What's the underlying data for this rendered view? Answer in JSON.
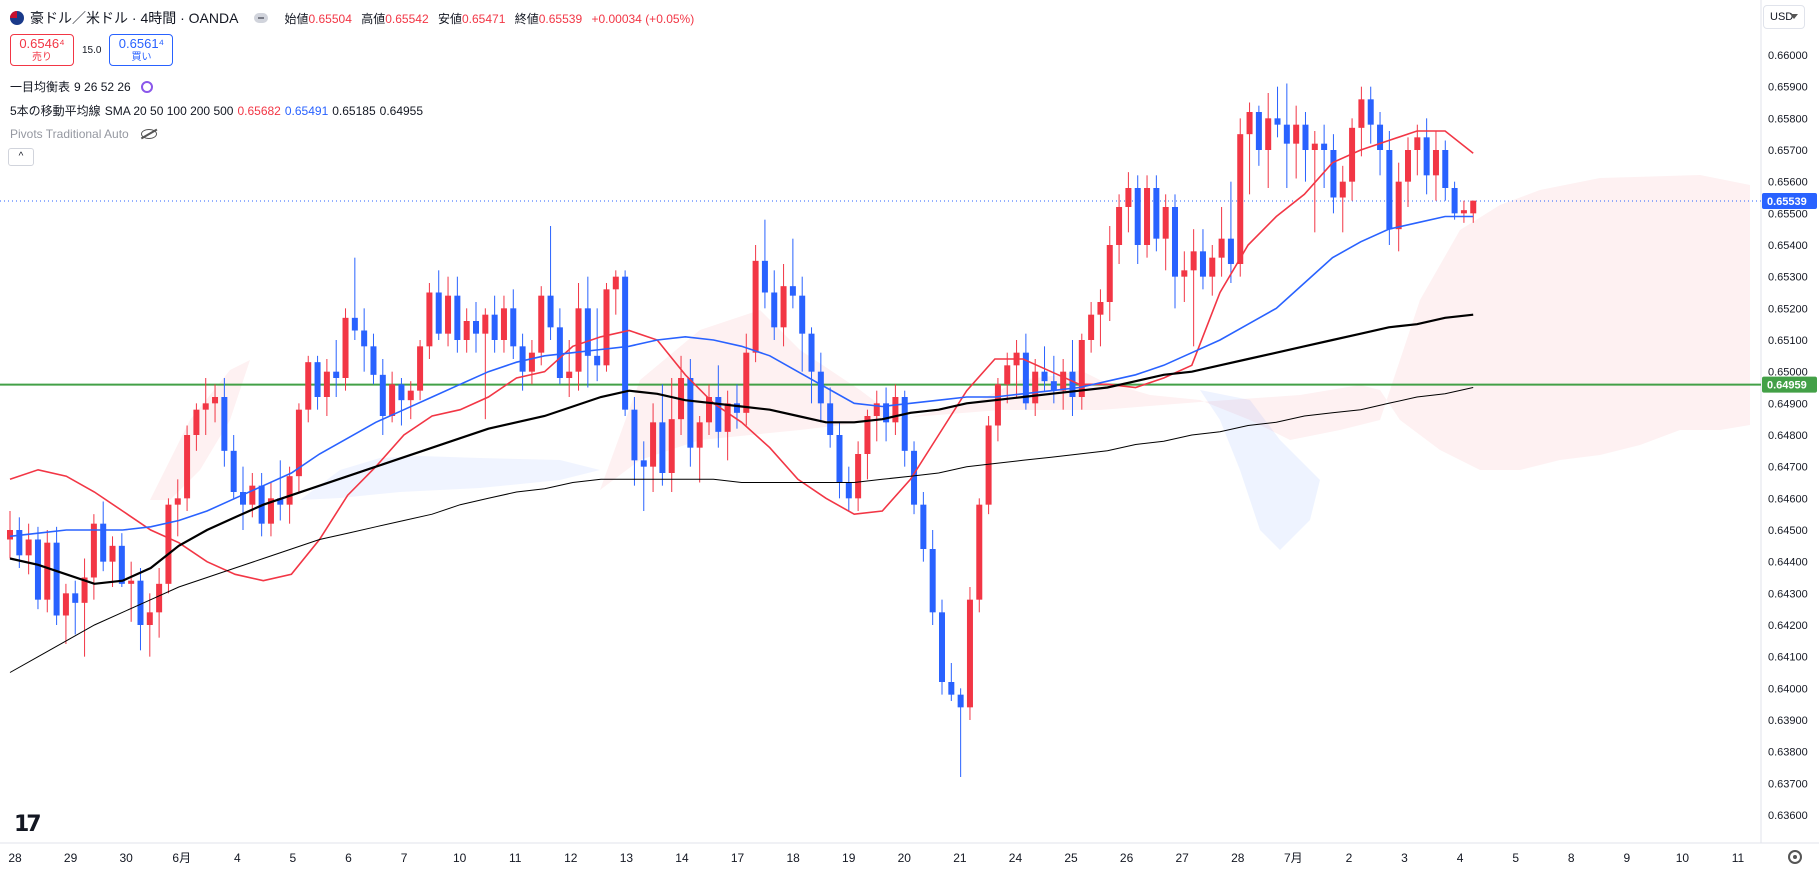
{
  "header": {
    "symbol": "豪ドル／米ドル · 4時間 · OANDA",
    "open_label": "始値",
    "open": "0.65504",
    "high_label": "高値",
    "high": "0.65542",
    "low_label": "安値",
    "low": "0.65471",
    "close_label": "終値",
    "close": "0.65539",
    "change": "+0.00034 (+0.05%)"
  },
  "trade": {
    "sell_price": "0.6546⁴",
    "sell_label": "売り",
    "spread": "15.0",
    "buy_price": "0.6561⁴",
    "buy_label": "買い"
  },
  "indicators": {
    "ichimoku": {
      "name": "一目均衡表",
      "params": "9 26 52 26"
    },
    "sma": {
      "name": "5本の移動平均線",
      "params": "SMA 20 50 100 200 500",
      "v1": "0.65682",
      "v2": "0.65491",
      "v3": "0.65185",
      "v4": "0.64955"
    },
    "pivots": {
      "name": "Pivots Traditional Auto"
    }
  },
  "collapse_label": "^",
  "currency": "USD",
  "logo": "17",
  "colors": {
    "up": "#f23645",
    "down": "#2962ff",
    "sma20": "#f23645",
    "sma50": "#2962ff",
    "sma100": "#000000",
    "sma200": "#000000",
    "level_line": "#43a047"
  },
  "chart_data": {
    "type": "candlestick",
    "y_ticks": [
      "0.66000",
      "0.65900",
      "0.65800",
      "0.65700",
      "0.65600",
      "0.65500",
      "0.65400",
      "0.65300",
      "0.65200",
      "0.65100",
      "0.65000",
      "0.64900",
      "0.64800",
      "0.64700",
      "0.64600",
      "0.64500",
      "0.64400",
      "0.64300",
      "0.64200",
      "0.64100",
      "0.64000",
      "0.63900",
      "0.63800",
      "0.63700",
      "0.63600"
    ],
    "ylim": [
      0.6356,
      0.6605
    ],
    "x_labels": [
      "28",
      "29",
      "30",
      "6月",
      "4",
      "5",
      "6",
      "7",
      "10",
      "11",
      "12",
      "13",
      "14",
      "17",
      "18",
      "19",
      "20",
      "21",
      "24",
      "25",
      "26",
      "27",
      "28",
      "7月",
      "2",
      "3",
      "4",
      "5",
      "8",
      "9",
      "10",
      "11"
    ],
    "price_label": "0.65539",
    "level_label": "0.64959",
    "level_value": 0.64959,
    "current_price": 0.65539,
    "ohlc": [
      [
        0.6447,
        0.6456,
        0.6441,
        0.645
      ],
      [
        0.645,
        0.6454,
        0.6438,
        0.6442
      ],
      [
        0.6442,
        0.6452,
        0.6436,
        0.6447
      ],
      [
        0.6447,
        0.6451,
        0.6425,
        0.6428
      ],
      [
        0.6428,
        0.645,
        0.6424,
        0.6446
      ],
      [
        0.6446,
        0.6451,
        0.642,
        0.6423
      ],
      [
        0.6423,
        0.6433,
        0.6414,
        0.643
      ],
      [
        0.643,
        0.6434,
        0.6417,
        0.6427
      ],
      [
        0.6427,
        0.6441,
        0.641,
        0.6435
      ],
      [
        0.6435,
        0.6455,
        0.6428,
        0.6452
      ],
      [
        0.6452,
        0.6459,
        0.6437,
        0.644
      ],
      [
        0.644,
        0.6448,
        0.6432,
        0.6445
      ],
      [
        0.6445,
        0.6449,
        0.6432,
        0.6433
      ],
      [
        0.6433,
        0.644,
        0.6421,
        0.6434
      ],
      [
        0.6434,
        0.6438,
        0.6412,
        0.642
      ],
      [
        0.642,
        0.643,
        0.641,
        0.6424
      ],
      [
        0.6424,
        0.6438,
        0.6416,
        0.6433
      ],
      [
        0.6433,
        0.646,
        0.643,
        0.6458
      ],
      [
        0.6458,
        0.6466,
        0.6448,
        0.646
      ],
      [
        0.646,
        0.6483,
        0.6456,
        0.648
      ],
      [
        0.648,
        0.649,
        0.6475,
        0.6488
      ],
      [
        0.6488,
        0.6498,
        0.648,
        0.649
      ],
      [
        0.649,
        0.6496,
        0.6484,
        0.6492
      ],
      [
        0.6492,
        0.6498,
        0.647,
        0.6475
      ],
      [
        0.6475,
        0.648,
        0.646,
        0.6462
      ],
      [
        0.6462,
        0.647,
        0.645,
        0.6458
      ],
      [
        0.6458,
        0.6468,
        0.6454,
        0.6464
      ],
      [
        0.6464,
        0.6468,
        0.6448,
        0.6452
      ],
      [
        0.6452,
        0.6465,
        0.6448,
        0.646
      ],
      [
        0.646,
        0.6472,
        0.6453,
        0.6458
      ],
      [
        0.6458,
        0.647,
        0.6452,
        0.6467
      ],
      [
        0.6467,
        0.649,
        0.6462,
        0.6488
      ],
      [
        0.6488,
        0.6505,
        0.6484,
        0.6503
      ],
      [
        0.6503,
        0.6505,
        0.6488,
        0.6492
      ],
      [
        0.6492,
        0.6504,
        0.6486,
        0.65
      ],
      [
        0.65,
        0.651,
        0.6492,
        0.6498
      ],
      [
        0.6498,
        0.652,
        0.6494,
        0.6517
      ],
      [
        0.6517,
        0.6536,
        0.651,
        0.6513
      ],
      [
        0.6513,
        0.652,
        0.65,
        0.6508
      ],
      [
        0.6508,
        0.6512,
        0.6496,
        0.6499
      ],
      [
        0.6499,
        0.6504,
        0.648,
        0.6486
      ],
      [
        0.6486,
        0.65,
        0.6484,
        0.6496
      ],
      [
        0.6496,
        0.6498,
        0.6483,
        0.6491
      ],
      [
        0.6491,
        0.6497,
        0.6485,
        0.6494
      ],
      [
        0.6494,
        0.651,
        0.6491,
        0.6508
      ],
      [
        0.6508,
        0.6528,
        0.6504,
        0.6525
      ],
      [
        0.6525,
        0.6532,
        0.651,
        0.6512
      ],
      [
        0.6512,
        0.653,
        0.6508,
        0.6524
      ],
      [
        0.6524,
        0.653,
        0.6506,
        0.651
      ],
      [
        0.651,
        0.652,
        0.6506,
        0.6516
      ],
      [
        0.6516,
        0.6522,
        0.6506,
        0.6512
      ],
      [
        0.6512,
        0.652,
        0.6485,
        0.6518
      ],
      [
        0.6518,
        0.6524,
        0.6506,
        0.651
      ],
      [
        0.651,
        0.6524,
        0.6506,
        0.652
      ],
      [
        0.652,
        0.6526,
        0.6504,
        0.6508
      ],
      [
        0.6508,
        0.6512,
        0.6494,
        0.65
      ],
      [
        0.65,
        0.651,
        0.6496,
        0.6506
      ],
      [
        0.6506,
        0.6527,
        0.6502,
        0.6524
      ],
      [
        0.6524,
        0.6546,
        0.651,
        0.6514
      ],
      [
        0.6514,
        0.652,
        0.6496,
        0.6498
      ],
      [
        0.6498,
        0.651,
        0.6492,
        0.65
      ],
      [
        0.65,
        0.6528,
        0.6494,
        0.652
      ],
      [
        0.652,
        0.653,
        0.6495,
        0.6505
      ],
      [
        0.6505,
        0.652,
        0.6497,
        0.6502
      ],
      [
        0.6502,
        0.6528,
        0.65,
        0.6526
      ],
      [
        0.6526,
        0.6532,
        0.6518,
        0.653
      ],
      [
        0.653,
        0.6532,
        0.6486,
        0.6488
      ],
      [
        0.6488,
        0.6492,
        0.6464,
        0.6472
      ],
      [
        0.6472,
        0.6478,
        0.6456,
        0.647
      ],
      [
        0.647,
        0.649,
        0.6462,
        0.6484
      ],
      [
        0.6484,
        0.6496,
        0.6464,
        0.6468
      ],
      [
        0.6468,
        0.6498,
        0.6462,
        0.6485
      ],
      [
        0.6485,
        0.6505,
        0.648,
        0.6498
      ],
      [
        0.6498,
        0.6504,
        0.647,
        0.6476
      ],
      [
        0.6476,
        0.6486,
        0.6465,
        0.6484
      ],
      [
        0.6484,
        0.6496,
        0.648,
        0.6492
      ],
      [
        0.6492,
        0.6502,
        0.6476,
        0.6481
      ],
      [
        0.6481,
        0.6494,
        0.6472,
        0.649
      ],
      [
        0.649,
        0.6496,
        0.6482,
        0.6487
      ],
      [
        0.6487,
        0.6512,
        0.6483,
        0.6506
      ],
      [
        0.6506,
        0.654,
        0.6503,
        0.6535
      ],
      [
        0.6535,
        0.6548,
        0.652,
        0.6525
      ],
      [
        0.6525,
        0.6532,
        0.651,
        0.6514
      ],
      [
        0.6514,
        0.6534,
        0.6508,
        0.6527
      ],
      [
        0.6527,
        0.6542,
        0.652,
        0.6524
      ],
      [
        0.6524,
        0.653,
        0.65,
        0.6512
      ],
      [
        0.6512,
        0.6514,
        0.649,
        0.65
      ],
      [
        0.65,
        0.6506,
        0.6484,
        0.649
      ],
      [
        0.649,
        0.6495,
        0.6476,
        0.648
      ],
      [
        0.648,
        0.6484,
        0.646,
        0.6465
      ],
      [
        0.6465,
        0.647,
        0.6456,
        0.646
      ],
      [
        0.646,
        0.6478,
        0.6456,
        0.6474
      ],
      [
        0.6474,
        0.6488,
        0.6466,
        0.6486
      ],
      [
        0.6486,
        0.6494,
        0.6478,
        0.649
      ],
      [
        0.649,
        0.6495,
        0.6478,
        0.6484
      ],
      [
        0.6484,
        0.6496,
        0.648,
        0.6492
      ],
      [
        0.6492,
        0.6494,
        0.647,
        0.6475
      ],
      [
        0.6475,
        0.6478,
        0.6455,
        0.6458
      ],
      [
        0.6458,
        0.6462,
        0.644,
        0.6444
      ],
      [
        0.6444,
        0.645,
        0.642,
        0.6424
      ],
      [
        0.6424,
        0.6428,
        0.6398,
        0.6402
      ],
      [
        0.6402,
        0.6408,
        0.6396,
        0.6398
      ],
      [
        0.6398,
        0.64,
        0.6372,
        0.6394
      ],
      [
        0.6394,
        0.6432,
        0.639,
        0.6428
      ],
      [
        0.6428,
        0.646,
        0.6424,
        0.6458
      ],
      [
        0.6458,
        0.6486,
        0.6455,
        0.6483
      ],
      [
        0.6483,
        0.6498,
        0.6478,
        0.6496
      ],
      [
        0.6496,
        0.6506,
        0.649,
        0.6502
      ],
      [
        0.6502,
        0.651,
        0.6492,
        0.6506
      ],
      [
        0.6506,
        0.6512,
        0.6488,
        0.649
      ],
      [
        0.649,
        0.6504,
        0.6486,
        0.65
      ],
      [
        0.65,
        0.6508,
        0.6494,
        0.6497
      ],
      [
        0.6497,
        0.6505,
        0.649,
        0.6494
      ],
      [
        0.6494,
        0.6504,
        0.6488,
        0.65
      ],
      [
        0.65,
        0.651,
        0.6486,
        0.6492
      ],
      [
        0.6492,
        0.6512,
        0.6488,
        0.651
      ],
      [
        0.651,
        0.6522,
        0.6506,
        0.6518
      ],
      [
        0.6518,
        0.6526,
        0.6508,
        0.6522
      ],
      [
        0.6522,
        0.6546,
        0.6516,
        0.654
      ],
      [
        0.654,
        0.6556,
        0.6534,
        0.6552
      ],
      [
        0.6552,
        0.6563,
        0.6544,
        0.6558
      ],
      [
        0.6558,
        0.6562,
        0.6534,
        0.654
      ],
      [
        0.654,
        0.6562,
        0.6536,
        0.6558
      ],
      [
        0.6558,
        0.6562,
        0.6538,
        0.6542
      ],
      [
        0.6542,
        0.6556,
        0.6532,
        0.6552
      ],
      [
        0.6552,
        0.6556,
        0.652,
        0.653
      ],
      [
        0.653,
        0.6538,
        0.6522,
        0.6532
      ],
      [
        0.6532,
        0.6545,
        0.6508,
        0.6538
      ],
      [
        0.6538,
        0.6545,
        0.6526,
        0.653
      ],
      [
        0.653,
        0.654,
        0.6524,
        0.6536
      ],
      [
        0.6536,
        0.6552,
        0.653,
        0.6542
      ],
      [
        0.6542,
        0.656,
        0.6528,
        0.6534
      ],
      [
        0.6534,
        0.658,
        0.653,
        0.6575
      ],
      [
        0.6575,
        0.6585,
        0.6556,
        0.6582
      ],
      [
        0.6582,
        0.6584,
        0.6565,
        0.657
      ],
      [
        0.657,
        0.6588,
        0.6558,
        0.658
      ],
      [
        0.658,
        0.659,
        0.6574,
        0.6578
      ],
      [
        0.6578,
        0.6591,
        0.6558,
        0.6572
      ],
      [
        0.6572,
        0.6584,
        0.6561,
        0.6578
      ],
      [
        0.6578,
        0.6582,
        0.656,
        0.657
      ],
      [
        0.657,
        0.6576,
        0.6544,
        0.6572
      ],
      [
        0.6572,
        0.6578,
        0.6558,
        0.657
      ],
      [
        0.657,
        0.6575,
        0.655,
        0.6555
      ],
      [
        0.6555,
        0.6565,
        0.6544,
        0.656
      ],
      [
        0.656,
        0.658,
        0.6554,
        0.6577
      ],
      [
        0.6577,
        0.659,
        0.6568,
        0.6586
      ],
      [
        0.6586,
        0.659,
        0.6572,
        0.6578
      ],
      [
        0.6578,
        0.6582,
        0.6562,
        0.657
      ],
      [
        0.657,
        0.6576,
        0.654,
        0.6545
      ],
      [
        0.6545,
        0.6566,
        0.6538,
        0.656
      ],
      [
        0.656,
        0.6574,
        0.6552,
        0.657
      ],
      [
        0.657,
        0.6578,
        0.6562,
        0.6574
      ],
      [
        0.6574,
        0.658,
        0.6556,
        0.6562
      ],
      [
        0.6562,
        0.6576,
        0.6554,
        0.657
      ],
      [
        0.657,
        0.6573,
        0.6554,
        0.6558
      ],
      [
        0.6558,
        0.656,
        0.6548,
        0.655
      ],
      [
        0.655,
        0.6554,
        0.6547,
        0.6551
      ],
      [
        0.655,
        0.6554,
        0.6547,
        0.6554
      ]
    ],
    "series": [
      {
        "name": "SMA 20",
        "values": [
          0.6466,
          0.6469,
          0.6467,
          0.6462,
          0.6456,
          0.645,
          0.6446,
          0.644,
          0.6436,
          0.6434,
          0.6436,
          0.6447,
          0.6461,
          0.647,
          0.648,
          0.6486,
          0.6488,
          0.6492,
          0.6498,
          0.65,
          0.6508,
          0.6511,
          0.6513,
          0.651,
          0.6499,
          0.649,
          0.6484,
          0.6476,
          0.6466,
          0.646,
          0.6455,
          0.6456,
          0.6466,
          0.648,
          0.6494,
          0.6504,
          0.6504,
          0.65,
          0.6496,
          0.6496,
          0.6495,
          0.6498,
          0.6502,
          0.6525,
          0.654,
          0.6549,
          0.6556,
          0.6566,
          0.657,
          0.6573,
          0.6576,
          0.6576,
          0.6569
        ]
      },
      {
        "name": "SMA 50",
        "values": [
          0.6448,
          0.6449,
          0.645,
          0.645,
          0.645,
          0.6451,
          0.6453,
          0.6456,
          0.646,
          0.6464,
          0.6468,
          0.6474,
          0.6479,
          0.6484,
          0.6488,
          0.6492,
          0.6496,
          0.65,
          0.6503,
          0.6505,
          0.6506,
          0.6507,
          0.6508,
          0.651,
          0.6511,
          0.651,
          0.6508,
          0.6505,
          0.65,
          0.6495,
          0.649,
          0.6489,
          0.649,
          0.6491,
          0.6492,
          0.6492,
          0.6493,
          0.6494,
          0.6495,
          0.6497,
          0.6499,
          0.6502,
          0.6506,
          0.651,
          0.6515,
          0.652,
          0.6528,
          0.6536,
          0.6541,
          0.6545,
          0.6547,
          0.6549,
          0.6549
        ]
      },
      {
        "name": "SMA 100",
        "values": [
          0.6441,
          0.6439,
          0.6436,
          0.6433,
          0.6434,
          0.6438,
          0.6445,
          0.645,
          0.6454,
          0.6458,
          0.6461,
          0.6464,
          0.6467,
          0.647,
          0.6473,
          0.6476,
          0.6479,
          0.6482,
          0.6484,
          0.6486,
          0.6489,
          0.6492,
          0.6494,
          0.6493,
          0.6491,
          0.649,
          0.6489,
          0.6488,
          0.6486,
          0.6484,
          0.6484,
          0.6485,
          0.6487,
          0.6488,
          0.649,
          0.6491,
          0.6492,
          0.6493,
          0.6494,
          0.6495,
          0.6497,
          0.6499,
          0.65,
          0.6502,
          0.6504,
          0.6506,
          0.6508,
          0.651,
          0.6512,
          0.6514,
          0.6515,
          0.6517,
          0.6518
        ]
      },
      {
        "name": "SMA 200",
        "values": [
          0.6405,
          0.641,
          0.6415,
          0.642,
          0.6424,
          0.6428,
          0.6432,
          0.6435,
          0.6438,
          0.6441,
          0.6444,
          0.6447,
          0.6449,
          0.6451,
          0.6453,
          0.6455,
          0.6458,
          0.646,
          0.6462,
          0.6463,
          0.6465,
          0.6466,
          0.6466,
          0.6466,
          0.6466,
          0.6466,
          0.6465,
          0.6465,
          0.6465,
          0.6465,
          0.6465,
          0.6466,
          0.6467,
          0.6468,
          0.647,
          0.6471,
          0.6472,
          0.6473,
          0.6474,
          0.6475,
          0.6477,
          0.6478,
          0.648,
          0.6481,
          0.6483,
          0.6484,
          0.6486,
          0.6487,
          0.6488,
          0.649,
          0.6492,
          0.6493,
          0.6495
        ]
      }
    ]
  }
}
